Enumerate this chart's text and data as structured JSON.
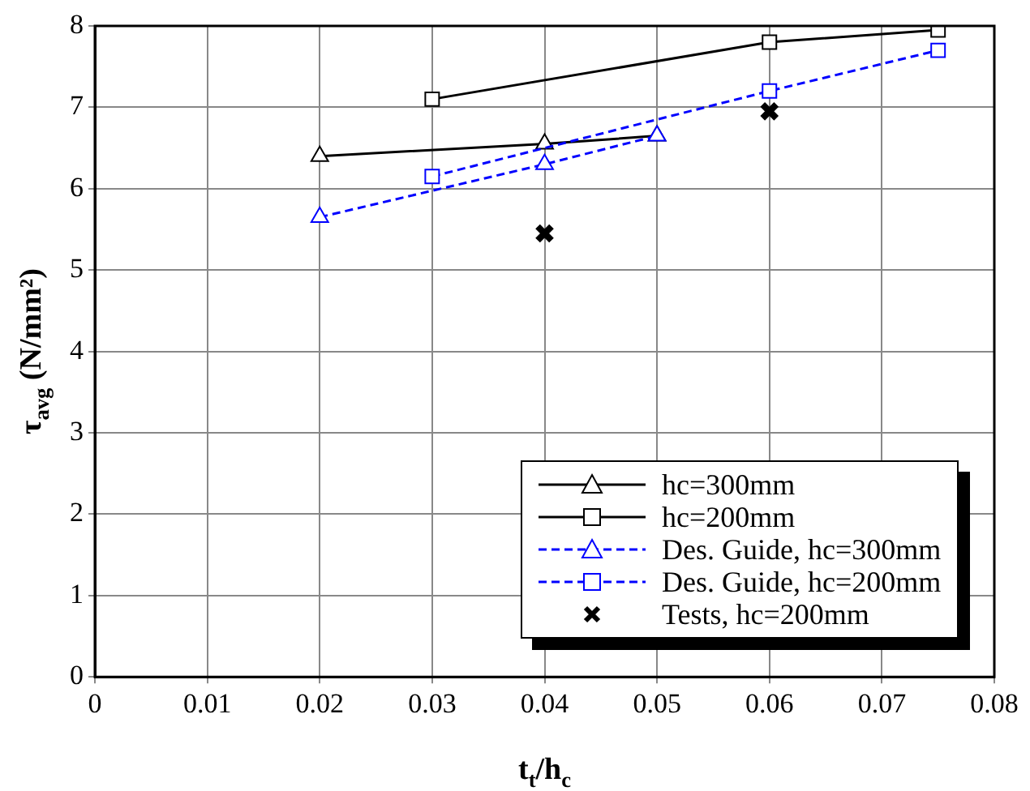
{
  "chart_data": {
    "type": "line",
    "xlabel": "t$_{t}$/h$_{c}$",
    "ylabel": "τ$_{avg}$ (N/mm²)",
    "xlim": [
      0,
      0.08
    ],
    "xticks": [
      0,
      0.01,
      0.02,
      0.03,
      0.04,
      0.05,
      0.06,
      0.07,
      0.08
    ],
    "ylim": [
      0,
      8
    ],
    "yticks": [
      0,
      1,
      2,
      3,
      4,
      5,
      6,
      7,
      8
    ],
    "grid": true,
    "legend": "bottom right",
    "series": [
      {
        "name": "hc=300mm",
        "color": "#000000",
        "marker": "triangle",
        "line_style": "solid",
        "x": [
          0.02,
          0.04,
          0.05
        ],
        "values": [
          6.4,
          6.55,
          6.65
        ]
      },
      {
        "name": "hc=200mm",
        "color": "#000000",
        "marker": "square",
        "line_style": "solid",
        "x": [
          0.03,
          0.06,
          0.075
        ],
        "values": [
          7.1,
          7.8,
          7.95
        ]
      },
      {
        "name": "Des. Guide, hc=300mm",
        "color": "#0000ff",
        "marker": "triangle",
        "line_style": "dashed",
        "x": [
          0.02,
          0.04,
          0.05
        ],
        "values": [
          5.65,
          6.3,
          6.65
        ]
      },
      {
        "name": "Des. Guide, hc=200mm",
        "color": "#0000ff",
        "marker": "square",
        "line_style": "dashed",
        "x": [
          0.03,
          0.06,
          0.075
        ],
        "values": [
          6.15,
          7.2,
          7.7
        ]
      },
      {
        "name": "Tests, hc=200mm",
        "type": "scatter",
        "color": "#000000",
        "marker": "cross",
        "x": [
          0.04,
          0.06
        ],
        "values": [
          5.45,
          6.95
        ]
      }
    ]
  }
}
